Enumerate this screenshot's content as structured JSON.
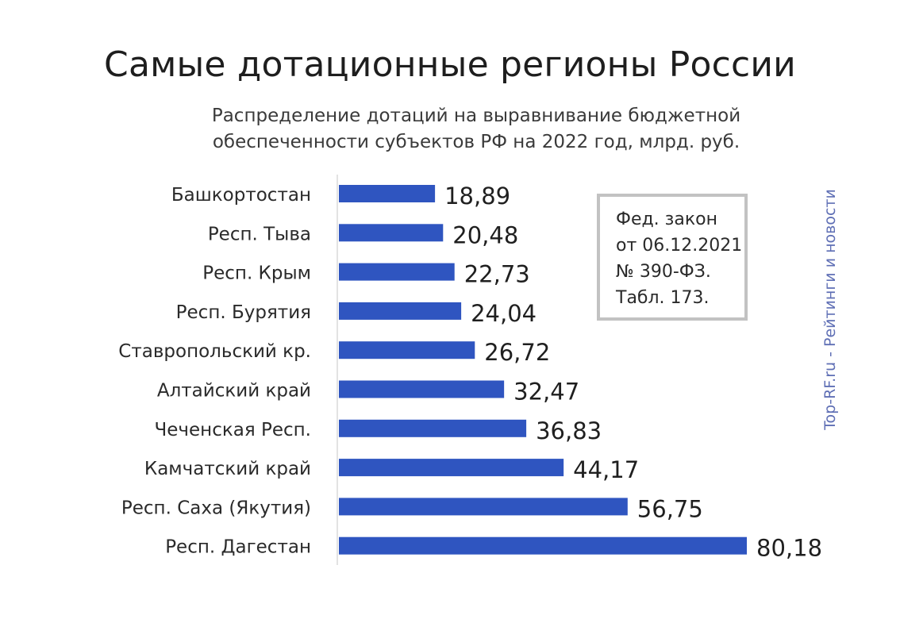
{
  "chart_data": {
    "type": "bar",
    "orientation": "horizontal",
    "title": "Самые дотационные регионы России",
    "subtitle_lines": [
      "Распределение дотаций на выравнивание бюджетной",
      "обеспеченности субъектов РФ на 2022 год, млрд. руб."
    ],
    "categories": [
      "Башкортостан",
      "Респ. Тыва",
      "Респ. Крым",
      "Респ. Бурятия",
      "Ставропольский кр.",
      "Алтайский край",
      "Чеченская Респ.",
      "Камчатский край",
      "Респ. Саха (Якутия)",
      "Респ. Дагестан"
    ],
    "values": [
      18.89,
      20.48,
      22.73,
      24.04,
      26.72,
      32.47,
      36.83,
      44.17,
      56.75,
      80.18
    ],
    "value_labels": [
      "18,89",
      "20,48",
      "22,73",
      "24,04",
      "26,72",
      "32,47",
      "36,83",
      "44,17",
      "56,75",
      "80,18"
    ],
    "xlim": [
      0,
      80.18
    ],
    "bar_color": "#2f55c0",
    "axis_line_color": "#e3e3e3",
    "grid": false,
    "legend": "none"
  },
  "note": {
    "lines": [
      "Фед. закон",
      "от 06.12.2021",
      "№ 390-ФЗ.",
      "Табл. 173."
    ]
  },
  "watermark": "Top-RF.ru - Рейтинги и новости"
}
